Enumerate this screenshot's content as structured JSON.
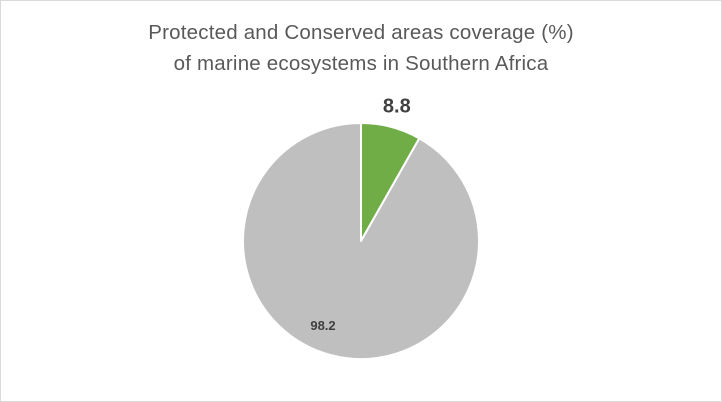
{
  "chart_data": {
    "type": "pie",
    "title_line1": "Protected and Conserved areas coverage (%)",
    "title_line2": "of marine ecosystems in Southern Africa",
    "slices": [
      {
        "value": 8.8,
        "label": "8.8",
        "color": "#70ad47",
        "label_style": "large-bold-outside"
      },
      {
        "value": 98.2,
        "label": "98.2",
        "color": "#bfbfbf",
        "label_style": "small-bold-inside"
      }
    ],
    "slice_border_color": "#ffffff",
    "start_angle": "12 o'clock",
    "direction": "clockwise"
  }
}
